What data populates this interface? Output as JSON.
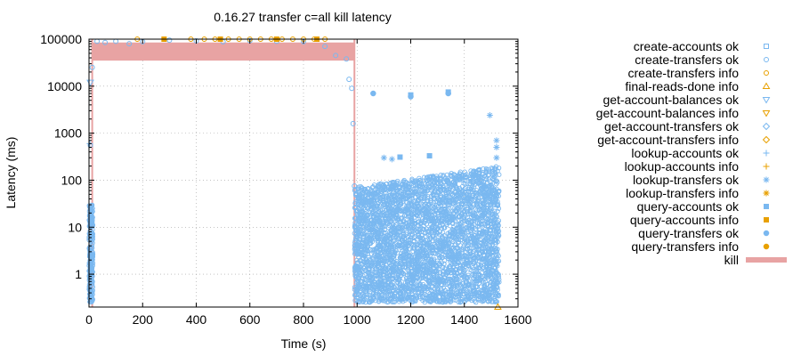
{
  "chart_data": {
    "type": "scatter",
    "title": "0.16.27 transfer c=all kill latency",
    "xlabel": "Time (s)",
    "ylabel": "Latency (ms)",
    "xlim": [
      0,
      1600
    ],
    "ylim": [
      0.2,
      100000
    ],
    "yscale": "log",
    "grid": true,
    "legend_position": "right",
    "x_ticks": [
      0,
      200,
      400,
      600,
      800,
      1000,
      1200,
      1400,
      1600
    ],
    "y_ticks": [
      1,
      10,
      100,
      1000,
      10000,
      100000
    ],
    "colors": {
      "blue": "#7ab8f0",
      "orange": "#e8a000",
      "kill": "#e8a3a3"
    },
    "legend": [
      {
        "name": "create-accounts ok",
        "marker": "square-open",
        "color": "#7ab8f0"
      },
      {
        "name": "create-transfers ok",
        "marker": "circle-open",
        "color": "#7ab8f0"
      },
      {
        "name": "create-transfers info",
        "marker": "circle-open",
        "color": "#e8a000"
      },
      {
        "name": "final-reads-done info",
        "marker": "triangle-up-open",
        "color": "#e8a000"
      },
      {
        "name": "get-account-balances ok",
        "marker": "triangle-down-open",
        "color": "#7ab8f0"
      },
      {
        "name": "get-account-balances info",
        "marker": "triangle-down-open",
        "color": "#e8a000"
      },
      {
        "name": "get-account-transfers ok",
        "marker": "diamond-open",
        "color": "#7ab8f0"
      },
      {
        "name": "get-account-transfers info",
        "marker": "diamond-open",
        "color": "#e8a000"
      },
      {
        "name": "lookup-accounts ok",
        "marker": "plus",
        "color": "#7ab8f0"
      },
      {
        "name": "lookup-accounts info",
        "marker": "plus",
        "color": "#e8a000"
      },
      {
        "name": "lookup-transfers ok",
        "marker": "star",
        "color": "#7ab8f0"
      },
      {
        "name": "lookup-transfers info",
        "marker": "star",
        "color": "#e8a000"
      },
      {
        "name": "query-accounts ok",
        "marker": "square-filled",
        "color": "#7ab8f0"
      },
      {
        "name": "query-accounts info",
        "marker": "square-filled",
        "color": "#e8a000"
      },
      {
        "name": "query-transfers ok",
        "marker": "star-filled",
        "color": "#7ab8f0"
      },
      {
        "name": "query-transfers info",
        "marker": "star-filled",
        "color": "#e8a000"
      },
      {
        "name": "kill",
        "marker": "bar",
        "color": "#e8a3a3"
      }
    ],
    "kill_interval": {
      "x": [
        12,
        990
      ],
      "y": [
        35000,
        85000
      ]
    },
    "dense_regions": [
      {
        "series": "create-transfers ok",
        "x": [
          0,
          15
        ],
        "y": [
          0.25,
          30
        ]
      },
      {
        "series": "create-transfers ok",
        "x": [
          990,
          1530
        ],
        "y_low": 0.25,
        "y_high_start": 70,
        "y_high_end": 200
      }
    ],
    "points": [
      {
        "series": "get-account-balances ok",
        "x": 5,
        "y": 12000
      },
      {
        "series": "lookup-accounts ok",
        "x": 3,
        "y": 600
      },
      {
        "series": "create-transfers ok",
        "x": 5,
        "y": 550
      },
      {
        "series": "create-transfers ok",
        "x": 12,
        "y": 25000
      },
      {
        "series": "create-transfers ok",
        "x": 30,
        "y": 90000
      },
      {
        "series": "create-transfers ok",
        "x": 60,
        "y": 85000
      },
      {
        "series": "create-transfers ok",
        "x": 100,
        "y": 90000
      },
      {
        "series": "create-transfers ok",
        "x": 150,
        "y": 80000
      },
      {
        "series": "create-transfers ok",
        "x": 200,
        "y": 88000
      },
      {
        "series": "create-transfers ok",
        "x": 300,
        "y": 95000
      },
      {
        "series": "create-transfers ok",
        "x": 400,
        "y": 92000
      },
      {
        "series": "create-transfers ok",
        "x": 500,
        "y": 88000
      },
      {
        "series": "create-transfers ok",
        "x": 600,
        "y": 93000
      },
      {
        "series": "create-transfers ok",
        "x": 700,
        "y": 90000
      },
      {
        "series": "create-transfers ok",
        "x": 800,
        "y": 88000
      },
      {
        "series": "create-transfers ok",
        "x": 880,
        "y": 70000
      },
      {
        "series": "create-transfers ok",
        "x": 920,
        "y": 45000
      },
      {
        "series": "create-transfers ok",
        "x": 960,
        "y": 38000
      },
      {
        "series": "create-transfers ok",
        "x": 970,
        "y": 14000
      },
      {
        "series": "create-transfers ok",
        "x": 980,
        "y": 9000
      },
      {
        "series": "create-transfers ok",
        "x": 985,
        "y": 1600
      },
      {
        "series": "create-transfers info",
        "x": 180,
        "y": 100000
      },
      {
        "series": "create-transfers info",
        "x": 380,
        "y": 100000
      },
      {
        "series": "create-transfers info",
        "x": 430,
        "y": 100000
      },
      {
        "series": "create-transfers info",
        "x": 470,
        "y": 100000
      },
      {
        "series": "create-transfers info",
        "x": 520,
        "y": 100000
      },
      {
        "series": "create-transfers info",
        "x": 560,
        "y": 100000
      },
      {
        "series": "create-transfers info",
        "x": 600,
        "y": 100000
      },
      {
        "series": "create-transfers info",
        "x": 640,
        "y": 100000
      },
      {
        "series": "create-transfers info",
        "x": 680,
        "y": 100000
      },
      {
        "series": "create-transfers info",
        "x": 720,
        "y": 100000
      },
      {
        "series": "create-transfers info",
        "x": 760,
        "y": 100000
      },
      {
        "series": "create-transfers info",
        "x": 800,
        "y": 100000
      },
      {
        "series": "create-transfers info",
        "x": 840,
        "y": 100000
      },
      {
        "series": "create-transfers info",
        "x": 880,
        "y": 100000
      },
      {
        "series": "query-accounts info",
        "x": 280,
        "y": 100000
      },
      {
        "series": "query-accounts info",
        "x": 490,
        "y": 100000
      },
      {
        "series": "query-accounts info",
        "x": 700,
        "y": 100000
      },
      {
        "series": "query-accounts info",
        "x": 850,
        "y": 100000
      },
      {
        "series": "query-accounts ok",
        "x": 1200,
        "y": 6500
      },
      {
        "series": "query-accounts ok",
        "x": 1340,
        "y": 7500
      },
      {
        "series": "query-accounts ok",
        "x": 1160,
        "y": 310
      },
      {
        "series": "query-accounts ok",
        "x": 1270,
        "y": 330
      },
      {
        "series": "query-transfers ok",
        "x": 1060,
        "y": 7000
      },
      {
        "series": "query-transfers ok",
        "x": 1200,
        "y": 6000
      },
      {
        "series": "query-transfers ok",
        "x": 1340,
        "y": 7000
      },
      {
        "series": "lookup-transfers ok",
        "x": 1495,
        "y": 2400
      },
      {
        "series": "lookup-transfers ok",
        "x": 1520,
        "y": 700
      },
      {
        "series": "lookup-transfers ok",
        "x": 1520,
        "y": 500
      },
      {
        "series": "lookup-transfers ok",
        "x": 1520,
        "y": 300
      },
      {
        "series": "lookup-transfers ok",
        "x": 1100,
        "y": 300
      },
      {
        "series": "lookup-transfers ok",
        "x": 1130,
        "y": 280
      },
      {
        "series": "create-transfers ok",
        "x": 990,
        "y": 75
      },
      {
        "series": "final-reads-done info",
        "x": 1525,
        "y": 0.2
      }
    ]
  }
}
